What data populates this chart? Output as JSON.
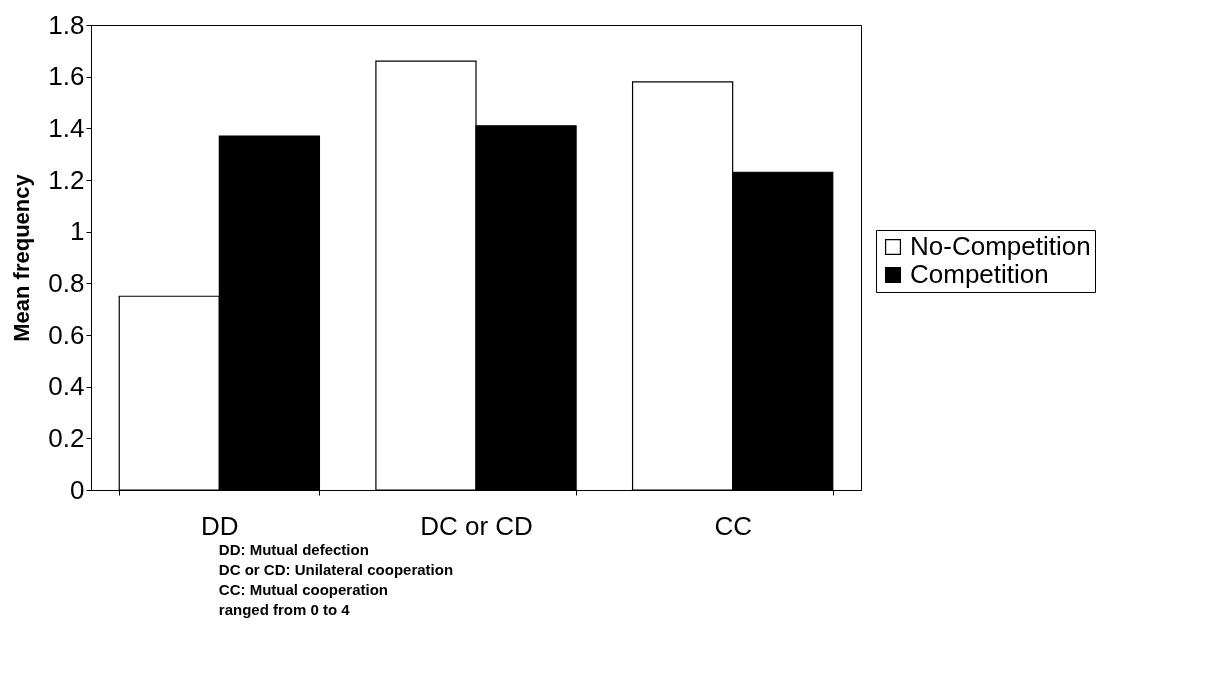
{
  "chart_data": {
    "type": "bar",
    "ylabel": "Mean frequency",
    "categories": [
      "DD",
      "DC or CD",
      "CC"
    ],
    "series": [
      {
        "name": "No-Competition",
        "color": "#ffffff",
        "values": [
          0.75,
          1.66,
          1.58
        ]
      },
      {
        "name": "Competition",
        "color": "#000000",
        "values": [
          1.37,
          1.41,
          1.23
        ]
      }
    ],
    "ylim": [
      0,
      1.8
    ],
    "yticks": [
      0,
      0.2,
      0.4,
      0.6,
      0.8,
      1,
      1.2,
      1.4,
      1.6,
      1.8
    ],
    "grid": false,
    "legend": "right",
    "annotations": [
      "DD: Mutual defection",
      "DC or CD: Unilateral cooperation",
      "CC: Mutual cooperation",
      "ranged from 0 to 4"
    ]
  }
}
